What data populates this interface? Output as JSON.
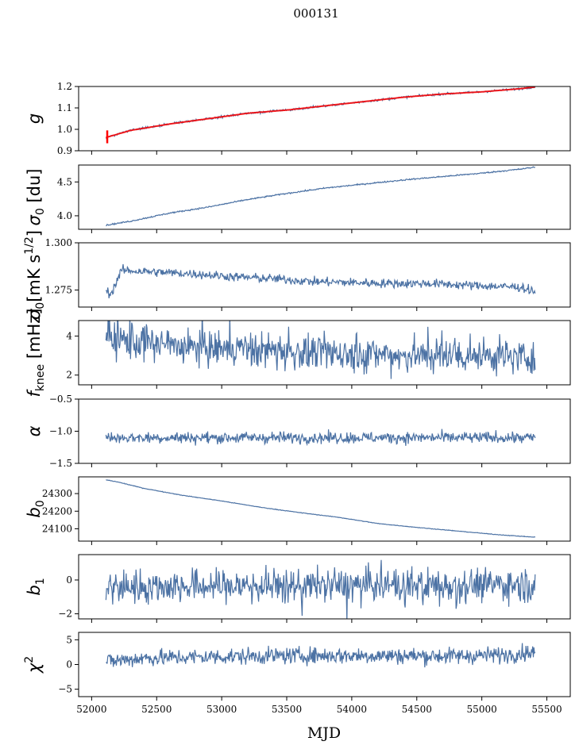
{
  "figure_title": "000131",
  "chart_data": {
    "type": "line",
    "title": "000131",
    "xlabel": "MJD",
    "xlim": [
      51900,
      55680
    ],
    "xticks": [
      52000,
      52500,
      53000,
      53500,
      54000,
      54500,
      55000,
      55500
    ],
    "xtick_labels": [
      "52000",
      "52500",
      "53000",
      "53500",
      "54000",
      "54500",
      "55000",
      "55500"
    ],
    "line_color": "#4c72a4",
    "fit_color": "#ff0000",
    "panels": [
      {
        "id": "g",
        "ylabel_symbol": "g",
        "ylabel_sub": "",
        "ylabel_rest": "",
        "ylim": [
          0.9,
          1.2
        ],
        "yticks": [
          0.9,
          1.0,
          1.1,
          1.2
        ],
        "ytick_labels": [
          "0.9",
          "1.0",
          "1.1",
          "1.2"
        ],
        "x": [
          52110,
          52300,
          52600,
          52900,
          53200,
          53500,
          53800,
          54100,
          54400,
          54700,
          55000,
          55300,
          55410
        ],
        "y": [
          0.962,
          0.995,
          1.025,
          1.05,
          1.075,
          1.09,
          1.11,
          1.13,
          1.15,
          1.165,
          1.175,
          1.19,
          1.198
        ],
        "noise": 0.0025,
        "fit": true
      },
      {
        "id": "sigma0_du",
        "ylabel_symbol": "σ",
        "ylabel_sub": "0",
        "ylabel_rest": " [du]",
        "ylim": [
          3.8,
          4.75
        ],
        "yticks": [
          4.0,
          4.5
        ],
        "ytick_labels": [
          "4.0",
          "4.5"
        ],
        "x": [
          52110,
          52300,
          52600,
          52900,
          53200,
          53500,
          53800,
          54100,
          54400,
          54700,
          55000,
          55300,
          55410
        ],
        "y": [
          3.86,
          3.92,
          4.04,
          4.13,
          4.24,
          4.33,
          4.41,
          4.47,
          4.53,
          4.58,
          4.63,
          4.69,
          4.72
        ],
        "noise": 0.005,
        "fit": false
      },
      {
        "id": "sigma0_mk",
        "ylabel_symbol": "σ",
        "ylabel_sub": "0",
        "ylabel_rest": "[mK s",
        "ylabel_sup": "1/2",
        "ylabel_end": "]",
        "ylim": [
          1.266,
          1.3
        ],
        "yticks": [
          1.275,
          1.3
        ],
        "ytick_labels": [
          "1.275",
          "1.300"
        ],
        "x": [
          52110,
          52150,
          52230,
          52500,
          52800,
          53100,
          53400,
          53700,
          54000,
          54300,
          54600,
          54900,
          55300,
          55410
        ],
        "y": [
          1.2745,
          1.273,
          1.2855,
          1.2845,
          1.2835,
          1.282,
          1.281,
          1.2795,
          1.279,
          1.2785,
          1.2785,
          1.2775,
          1.2765,
          1.2742
        ],
        "noise": 0.0012,
        "fit": false
      },
      {
        "id": "fknee",
        "ylabel_symbol": "f",
        "ylabel_sub": "knee",
        "ylabel_rest": " [mHz]",
        "ylim": [
          1.5,
          4.8
        ],
        "yticks": [
          2,
          4
        ],
        "ytick_labels": [
          "2",
          "4"
        ],
        "x": [
          52110,
          52400,
          52800,
          53200,
          53600,
          54000,
          54400,
          54800,
          55200,
          55410
        ],
        "y": [
          3.9,
          3.6,
          3.35,
          3.3,
          3.15,
          3.05,
          3.0,
          3.0,
          2.95,
          2.95
        ],
        "noise": 0.45,
        "fit": false
      },
      {
        "id": "alpha",
        "ylabel_symbol": "α",
        "ylabel_sub": "",
        "ylabel_rest": "",
        "ylim": [
          -1.5,
          -0.5
        ],
        "yticks": [
          -1.5,
          -1.0,
          -0.5
        ],
        "ytick_labels": [
          "−1.5",
          "−1.0",
          "−0.5"
        ],
        "x": [
          52110,
          53000,
          54000,
          55000,
          55410
        ],
        "y": [
          -1.1,
          -1.1,
          -1.1,
          -1.1,
          -1.1
        ],
        "noise": 0.045,
        "fit": false
      },
      {
        "id": "b0",
        "ylabel_symbol": "b",
        "ylabel_sub": "0",
        "ylabel_rest": "",
        "ylim": [
          24030,
          24395
        ],
        "yticks": [
          24100,
          24200,
          24300
        ],
        "ytick_labels": [
          "24100",
          "24200",
          "24300"
        ],
        "x": [
          52110,
          52200,
          52400,
          52700,
          53000,
          53300,
          53600,
          53900,
          54200,
          54500,
          54800,
          55100,
          55410
        ],
        "y": [
          24378,
          24366,
          24330,
          24290,
          24258,
          24222,
          24192,
          24165,
          24130,
          24108,
          24088,
          24068,
          24052
        ],
        "noise": 0.8,
        "fit": false
      },
      {
        "id": "b1",
        "ylabel_symbol": "b",
        "ylabel_sub": "1",
        "ylabel_rest": "",
        "ylim": [
          -2.3,
          1.5
        ],
        "yticks": [
          -2,
          0
        ],
        "ytick_labels": [
          "−2",
          "0"
        ],
        "x": [
          52110,
          53000,
          54000,
          55000,
          55410
        ],
        "y": [
          -0.4,
          -0.35,
          -0.3,
          -0.25,
          -0.3
        ],
        "noise": 0.5,
        "fit": false
      },
      {
        "id": "chi2",
        "ylabel_symbol": "χ",
        "ylabel_sub": "",
        "ylabel_rest": "",
        "ylabel_sup": "2",
        "ylim": [
          -6.5,
          6.5
        ],
        "yticks": [
          -5,
          0,
          5
        ],
        "ytick_labels": [
          "−5",
          "0",
          "5"
        ],
        "x": [
          52110,
          52400,
          53000,
          53600,
          54200,
          54800,
          55200,
          55410
        ],
        "y": [
          0.6,
          1.3,
          1.6,
          1.8,
          1.8,
          1.7,
          2.0,
          2.6
        ],
        "noise": 0.85,
        "fit": false
      }
    ]
  }
}
